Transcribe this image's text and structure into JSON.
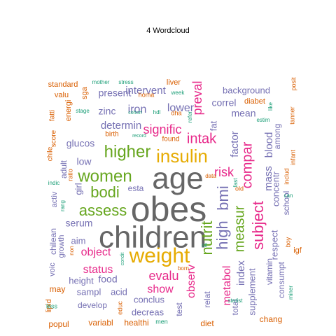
{
  "chart_data": {
    "type": "wordcloud",
    "title": "4  Wordcloud",
    "words": [
      {
        "text": "children",
        "color": "#666666"
      },
      {
        "text": "obes",
        "color": "#666666"
      },
      {
        "text": "age",
        "color": "#666666"
      },
      {
        "text": "weight",
        "color": "#e6ab02"
      },
      {
        "text": "insulin",
        "color": "#e6ab02"
      },
      {
        "text": "women",
        "color": "#66a61e"
      },
      {
        "text": "higher",
        "color": "#66a61e"
      },
      {
        "text": "assess",
        "color": "#66a61e"
      },
      {
        "text": "bodi",
        "color": "#66a61e"
      },
      {
        "text": "nutrit",
        "color": "#66a61e"
      },
      {
        "text": "high",
        "color": "#7570b3"
      },
      {
        "text": "bmi",
        "color": "#7570b3"
      },
      {
        "text": "subject",
        "color": "#e7298a"
      },
      {
        "text": "measur",
        "color": "#66a61e"
      },
      {
        "text": "compar",
        "color": "#e7298a"
      },
      {
        "text": "intak",
        "color": "#e7298a"
      },
      {
        "text": "risk",
        "color": "#e7298a"
      },
      {
        "text": "signific",
        "color": "#e7298a"
      },
      {
        "text": "preval",
        "color": "#e7298a"
      },
      {
        "text": "evalu",
        "color": "#e7298a"
      },
      {
        "text": "object",
        "color": "#e7298a"
      },
      {
        "text": "status",
        "color": "#e7298a"
      },
      {
        "text": "show",
        "color": "#e7298a"
      },
      {
        "text": "observ",
        "color": "#e7298a"
      },
      {
        "text": "metabol",
        "color": "#e7298a"
      },
      {
        "text": "mass",
        "color": "#7570b3"
      },
      {
        "text": "blood",
        "color": "#7570b3"
      },
      {
        "text": "index",
        "color": "#7570b3"
      },
      {
        "text": "factor",
        "color": "#7570b3"
      },
      {
        "text": "mean",
        "color": "#7570b3"
      },
      {
        "text": "correl",
        "color": "#7570b3"
      },
      {
        "text": "lower",
        "color": "#7570b3"
      },
      {
        "text": "iron",
        "color": "#7570b3"
      },
      {
        "text": "determin",
        "color": "#7570b3"
      },
      {
        "text": "intervent",
        "color": "#7570b3"
      },
      {
        "text": "present",
        "color": "#7570b3"
      },
      {
        "text": "zinc",
        "color": "#7570b3"
      },
      {
        "text": "glucos",
        "color": "#7570b3"
      },
      {
        "text": "low",
        "color": "#7570b3"
      },
      {
        "text": "girl",
        "color": "#7570b3"
      },
      {
        "text": "adult",
        "color": "#7570b3"
      },
      {
        "text": "serum",
        "color": "#7570b3"
      },
      {
        "text": "aim",
        "color": "#7570b3"
      },
      {
        "text": "esta",
        "color": "#7570b3"
      },
      {
        "text": "fat",
        "color": "#7570b3"
      },
      {
        "text": "background",
        "color": "#7570b3"
      },
      {
        "text": "respect",
        "color": "#7570b3"
      },
      {
        "text": "supplement",
        "color": "#7570b3"
      },
      {
        "text": "concentr",
        "color": "#7570b3"
      },
      {
        "text": "among",
        "color": "#7570b3"
      },
      {
        "text": "school",
        "color": "#7570b3"
      },
      {
        "text": "vitamin",
        "color": "#7570b3"
      },
      {
        "text": "consumpt",
        "color": "#7570b3"
      },
      {
        "text": "total",
        "color": "#7570b3"
      },
      {
        "text": "relat",
        "color": "#7570b3"
      },
      {
        "text": "test",
        "color": "#7570b3"
      },
      {
        "text": "decreas",
        "color": "#7570b3"
      },
      {
        "text": "conclus",
        "color": "#7570b3"
      },
      {
        "text": "develop",
        "color": "#7570b3"
      },
      {
        "text": "sampl",
        "color": "#7570b3"
      },
      {
        "text": "acid",
        "color": "#7570b3"
      },
      {
        "text": "food",
        "color": "#7570b3"
      },
      {
        "text": "height",
        "color": "#7570b3"
      },
      {
        "text": "chilean",
        "color": "#7570b3"
      },
      {
        "text": "activ",
        "color": "#7570b3"
      },
      {
        "text": "growth",
        "color": "#7570b3"
      },
      {
        "text": "voic",
        "color": "#7570b3"
      },
      {
        "text": "popul",
        "color": "#d95f02"
      },
      {
        "text": "variabl",
        "color": "#d95f02"
      },
      {
        "text": "healthi",
        "color": "#d95f02"
      },
      {
        "text": "may",
        "color": "#d95f02"
      },
      {
        "text": "lipid",
        "color": "#d95f02"
      },
      {
        "text": "less",
        "color": "#1b9e77"
      },
      {
        "text": "educ",
        "color": "#d95f02"
      },
      {
        "text": "men",
        "color": "#1b9e77"
      },
      {
        "text": "diet",
        "color": "#d95f02"
      },
      {
        "text": "chang",
        "color": "#d95f02"
      },
      {
        "text": "statist",
        "color": "#1b9e77"
      },
      {
        "text": "miner",
        "color": "#1b9e77"
      },
      {
        "text": "boy",
        "color": "#d95f02"
      },
      {
        "text": "igf",
        "color": "#d95f02"
      },
      {
        "text": "born",
        "color": "#d95f02"
      },
      {
        "text": "oil",
        "color": "#1b9e77"
      },
      {
        "text": "condit",
        "color": "#1b9e77"
      },
      {
        "text": "non",
        "color": "#d95f02"
      },
      {
        "text": "rang",
        "color": "#1b9e77"
      },
      {
        "text": "indic",
        "color": "#1b9e77"
      },
      {
        "text": "chile",
        "color": "#d95f02"
      },
      {
        "text": "ratio",
        "color": "#d95f02"
      },
      {
        "text": "fatti",
        "color": "#d95f02"
      },
      {
        "text": "score",
        "color": "#d95f02"
      },
      {
        "text": "energi",
        "color": "#d95f02"
      },
      {
        "text": "standard",
        "color": "#d95f02"
      },
      {
        "text": "valu",
        "color": "#d95f02"
      },
      {
        "text": "sga",
        "color": "#d95f02"
      },
      {
        "text": "mother",
        "color": "#1b9e77"
      },
      {
        "text": "stress",
        "color": "#1b9e77"
      },
      {
        "text": "homa",
        "color": "#d95f02"
      },
      {
        "text": "liver",
        "color": "#d95f02"
      },
      {
        "text": "week",
        "color": "#1b9e77"
      },
      {
        "text": "stage",
        "color": "#1b9e77"
      },
      {
        "text": "cohort",
        "color": "#1b9e77"
      },
      {
        "text": "hdl",
        "color": "#1b9e77"
      },
      {
        "text": "dha",
        "color": "#d95f02"
      },
      {
        "text": "birth",
        "color": "#d95f02"
      },
      {
        "text": "record",
        "color": "#1b9e77"
      },
      {
        "text": "found",
        "color": "#d95f02"
      },
      {
        "text": "refer",
        "color": "#1b9e77"
      },
      {
        "text": "data",
        "color": "#d95f02"
      },
      {
        "text": "fast",
        "color": "#1b9e77"
      },
      {
        "text": "old",
        "color": "#d95f02"
      },
      {
        "text": "diabet",
        "color": "#d95f02"
      },
      {
        "text": "estim",
        "color": "#1b9e77"
      },
      {
        "text": "like",
        "color": "#1b9e77"
      },
      {
        "text": "infant",
        "color": "#d95f02"
      },
      {
        "text": "tanner",
        "color": "#d95f02"
      },
      {
        "text": "posit",
        "color": "#d95f02"
      },
      {
        "text": "includ",
        "color": "#d95f02"
      },
      {
        "text": "can",
        "color": "#1b9e77"
      }
    ]
  }
}
